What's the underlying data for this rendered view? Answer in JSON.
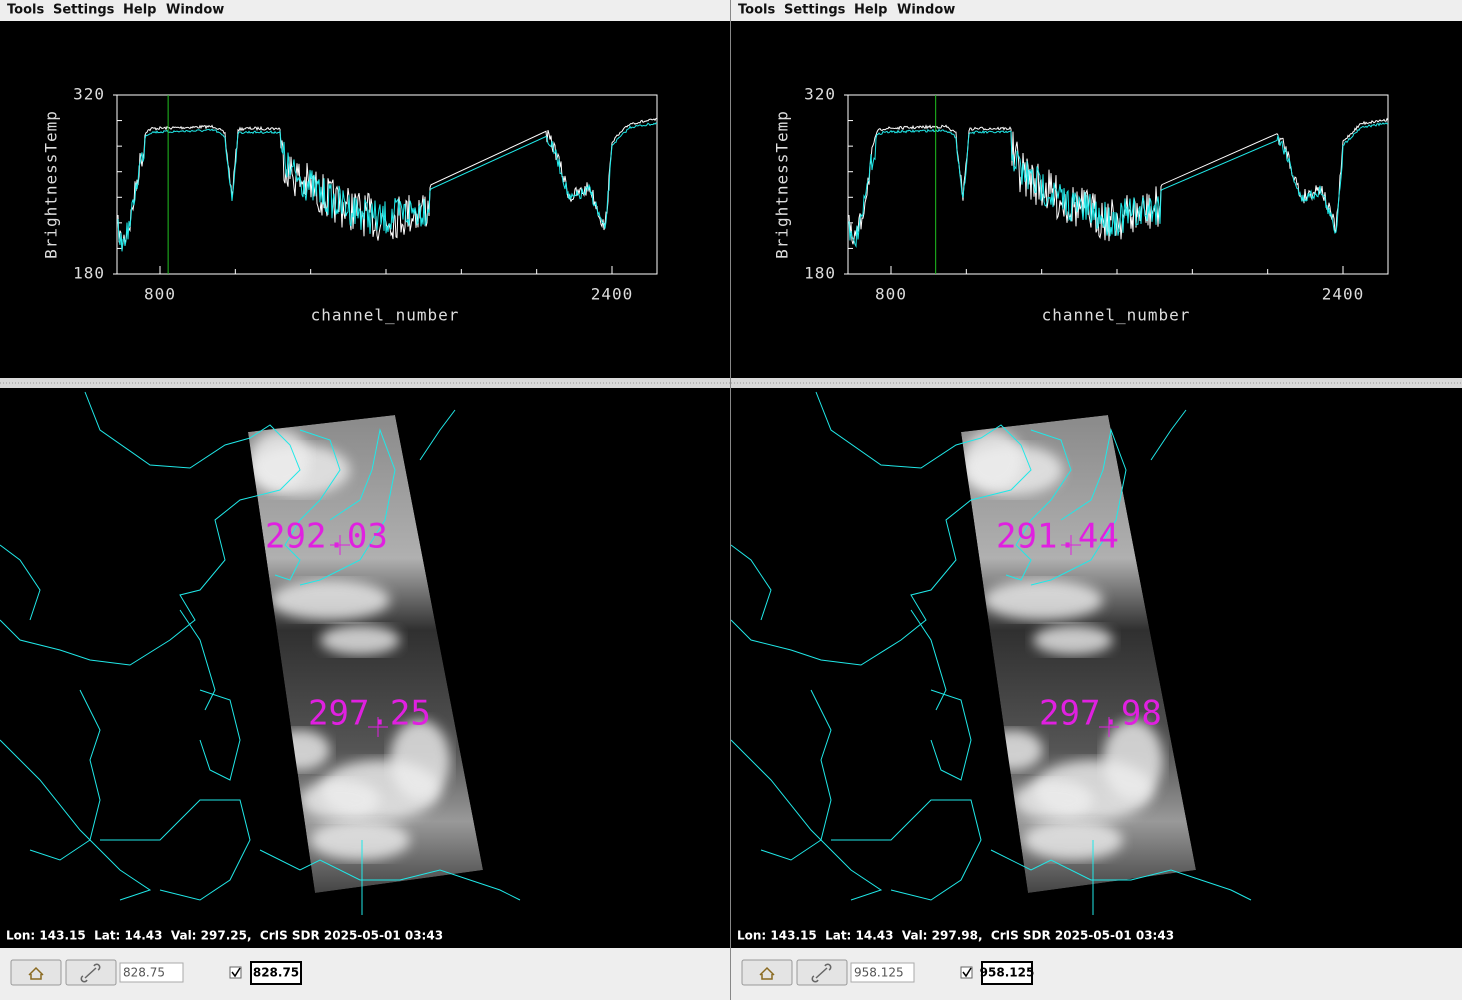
{
  "panels": [
    {
      "menu": [
        "Tools",
        "Settings",
        "Help",
        "Window"
      ],
      "plot": {
        "y_label": "BrightnessTemp",
        "x_label": "channel_number",
        "yticks": [
          320,
          180
        ],
        "xticks": [
          800,
          2400
        ]
      },
      "map": {
        "annotations": [
          "292.03",
          "297.25"
        ]
      },
      "status": "Lon: 143.15  Lat: 14.43  Val: 297.25,  CrIS SDR 2025-05-01 03:43",
      "channel": 828.75
    },
    {
      "menu": [
        "Tools",
        "Settings",
        "Help",
        "Window"
      ],
      "plot": {
        "y_label": "BrightnessTemp",
        "x_label": "channel_number",
        "yticks": [
          320,
          180
        ],
        "xticks": [
          800,
          2400
        ]
      },
      "map": {
        "annotations": [
          "291.44",
          "297.98"
        ]
      },
      "status": "Lon: 143.15  Lat: 14.43  Val: 297.98,  CrIS SDR 2025-05-01 03:43",
      "channel": 958.125
    }
  ]
}
